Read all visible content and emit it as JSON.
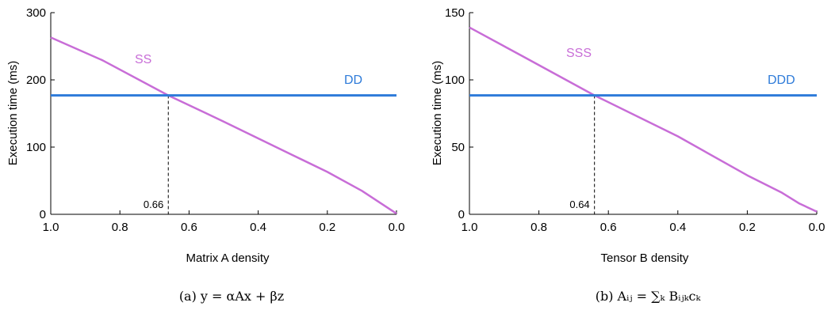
{
  "colors": {
    "sparse": "#c86dd7",
    "dense": "#2e7bd9",
    "axis": "#000000"
  },
  "chart_data": [
    {
      "type": "line",
      "caption": "(a) y = αAx + βz",
      "xlabel": "Matrix A density",
      "ylabel": "Execution time (ms)",
      "xlim": [
        1.0,
        0.0
      ],
      "ylim": [
        0,
        300
      ],
      "x_reversed": true,
      "xticks": [
        1.0,
        0.8,
        0.6,
        0.4,
        0.2,
        0.0
      ],
      "xtick_labels": [
        "1.0",
        "0.8",
        "0.6",
        "0.4",
        "0.2",
        "0.0"
      ],
      "yticks": [
        0,
        100,
        200,
        300
      ],
      "ytick_labels": [
        "0",
        "100",
        "200",
        "300"
      ],
      "grid": false,
      "crossover": {
        "x": 0.66,
        "y": 177,
        "label": "0.66"
      },
      "series": [
        {
          "name": "SS",
          "color_key": "sparse",
          "x": [
            1.0,
            0.85,
            0.66,
            0.5,
            0.3,
            0.2,
            0.1,
            0.05,
            0.0
          ],
          "y": [
            263,
            229,
            177,
            138,
            88,
            63,
            35,
            18,
            1
          ]
        },
        {
          "name": "DD",
          "color_key": "dense",
          "x": [
            1.0,
            0.0
          ],
          "y": [
            177,
            177
          ]
        }
      ]
    },
    {
      "type": "line",
      "caption": "(b) Aᵢⱼ = ∑ₖ Bᵢⱼₖcₖ",
      "xlabel": "Tensor B density",
      "ylabel": "Execution time (ms)",
      "xlim": [
        1.0,
        0.0
      ],
      "ylim": [
        0,
        150
      ],
      "x_reversed": true,
      "xticks": [
        1.0,
        0.8,
        0.6,
        0.4,
        0.2,
        0.0
      ],
      "xtick_labels": [
        "1.0",
        "0.8",
        "0.6",
        "0.4",
        "0.2",
        "0.0"
      ],
      "yticks": [
        0,
        50,
        100,
        150
      ],
      "ytick_labels": [
        "0",
        "50",
        "100",
        "150"
      ],
      "grid": false,
      "crossover": {
        "x": 0.64,
        "y": 88.5,
        "label": "0.64"
      },
      "series": [
        {
          "name": "SSS",
          "color_key": "sparse",
          "x": [
            1.0,
            0.85,
            0.64,
            0.4,
            0.2,
            0.1,
            0.05,
            0.0
          ],
          "y": [
            139,
            118,
            88.5,
            58,
            29,
            16,
            8,
            2
          ]
        },
        {
          "name": "DDD",
          "color_key": "dense",
          "x": [
            1.0,
            0.0
          ],
          "y": [
            88.5,
            88.5
          ]
        }
      ]
    }
  ]
}
